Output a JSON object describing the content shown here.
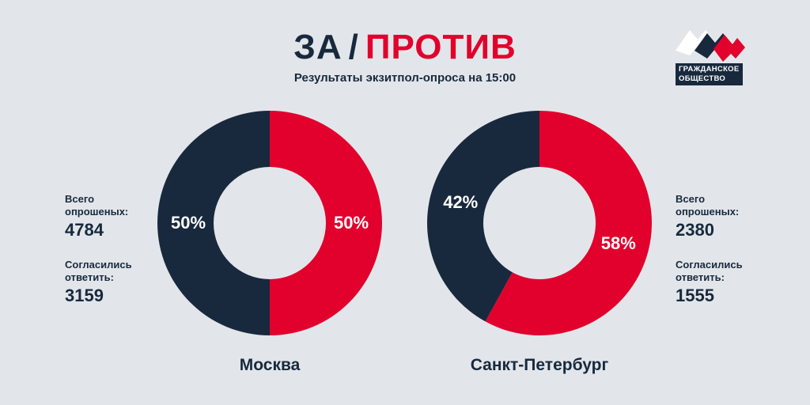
{
  "header": {
    "title_left": "ЗА",
    "title_sep": "/",
    "title_right": "ПРОТИВ",
    "subtitle": "Результаты экзитпол-опроса на 15:00"
  },
  "logo": {
    "line1": "ГРАЖДАНСКОЕ",
    "line2": "ОБЩЕСТВО"
  },
  "colors": {
    "background": "#e2e6ea",
    "dark_navy": "#18293d",
    "red": "#e2002d"
  },
  "stats_left": {
    "surveyed_label_1": "Всего",
    "surveyed_label_2": "опрошеных:",
    "surveyed_value": "4784",
    "agreed_label_1": "Согласились",
    "agreed_label_2": "ответить:",
    "agreed_value": "3159"
  },
  "stats_right": {
    "surveyed_label_1": "Всего",
    "surveyed_label_2": "опрошеных:",
    "surveyed_value": "2380",
    "agreed_label_1": "Согласились",
    "agreed_label_2": "ответить:",
    "agreed_value": "1555"
  },
  "chart_data": [
    {
      "type": "pie",
      "donut": true,
      "title": "Москва",
      "slices": [
        {
          "label": "50%",
          "value": 50,
          "color": "#e2002d"
        },
        {
          "label": "50%",
          "value": 50,
          "color": "#18293d"
        }
      ]
    },
    {
      "type": "pie",
      "donut": true,
      "title": "Санкт-Петербург",
      "slices": [
        {
          "label": "58%",
          "value": 58,
          "color": "#e2002d"
        },
        {
          "label": "42%",
          "value": 42,
          "color": "#18293d"
        }
      ]
    }
  ]
}
